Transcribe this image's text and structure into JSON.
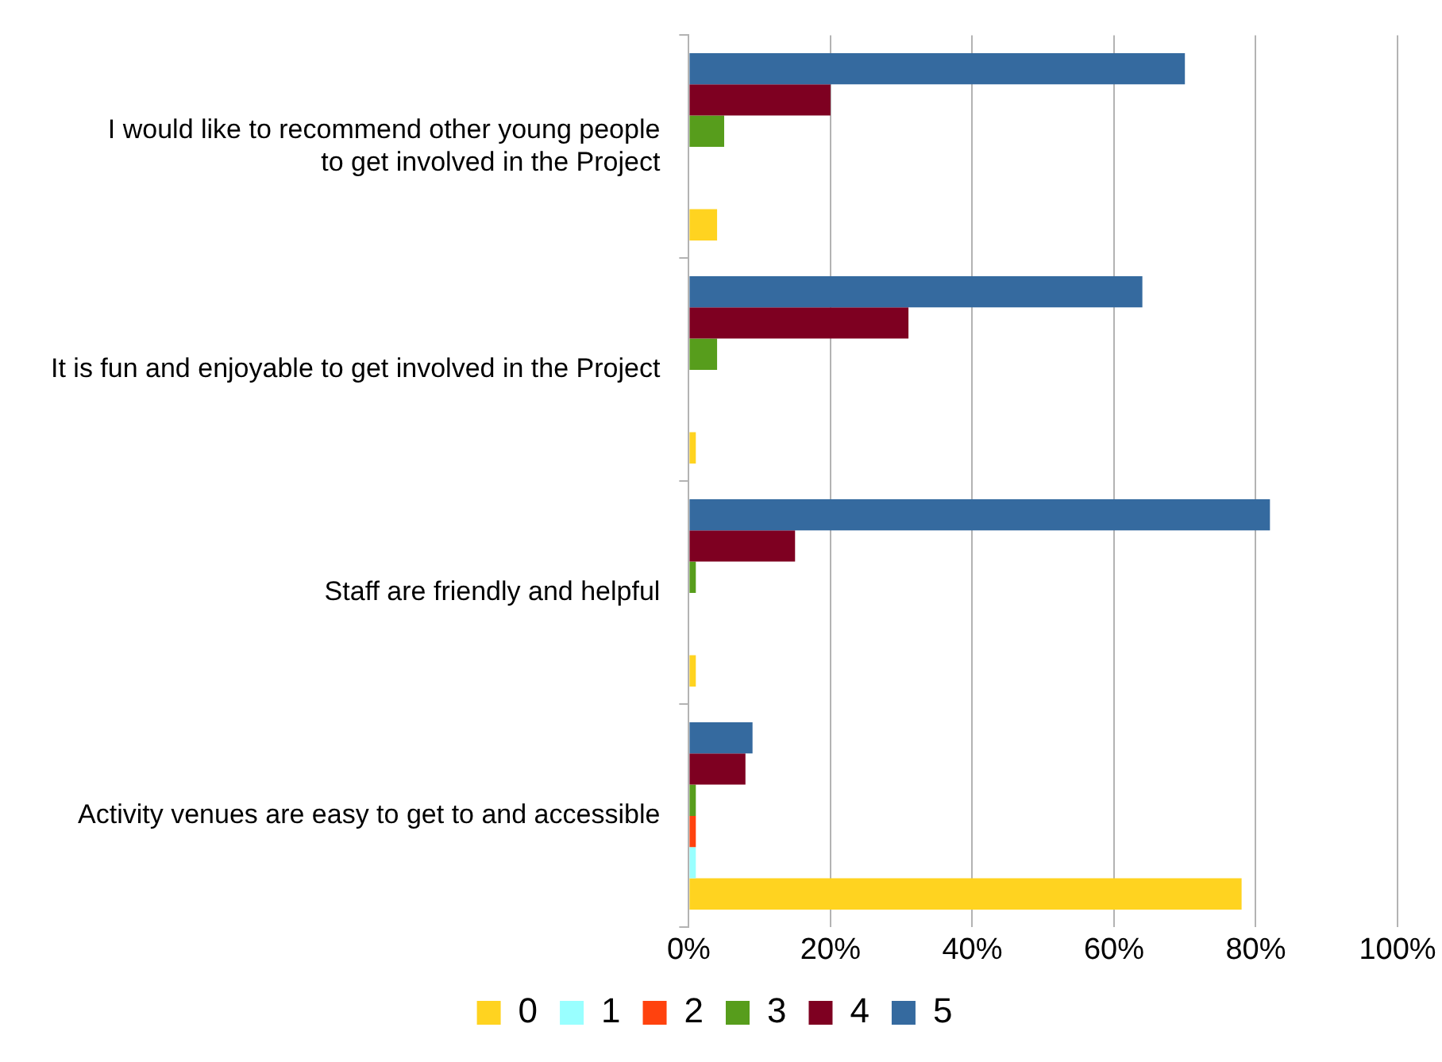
{
  "chart_data": {
    "type": "bar",
    "orientation": "horizontal",
    "categories": [
      "I would like to recommend other young people\nto get involved in the Project",
      "It is fun and enjoyable to get involved in the Project",
      "Staff are friendly and helpful",
      "Activity venues are easy to get to and accessible"
    ],
    "series": [
      {
        "name": "0",
        "color": "#ffd320",
        "values": [
          4,
          1,
          1,
          78
        ]
      },
      {
        "name": "1",
        "color": "#99ffff",
        "values": [
          0,
          0,
          0,
          1
        ]
      },
      {
        "name": "2",
        "color": "#ff420e",
        "values": [
          0,
          0,
          0,
          1
        ]
      },
      {
        "name": "3",
        "color": "#579d1c",
        "values": [
          5,
          4,
          1,
          1
        ]
      },
      {
        "name": "4",
        "color": "#7e0021",
        "values": [
          20,
          31,
          15,
          8
        ]
      },
      {
        "name": "5",
        "color": "#356a9f",
        "values": [
          70,
          64,
          82,
          9
        ]
      }
    ],
    "xlim": [
      0,
      100
    ],
    "xticks": [
      {
        "value": 0,
        "label": "0%"
      },
      {
        "value": 20,
        "label": "20%"
      },
      {
        "value": 40,
        "label": "40%"
      },
      {
        "value": 60,
        "label": "60%"
      },
      {
        "value": 80,
        "label": "80%"
      },
      {
        "value": 100,
        "label": "100%"
      }
    ],
    "grid": "x",
    "legend": "bottom"
  }
}
